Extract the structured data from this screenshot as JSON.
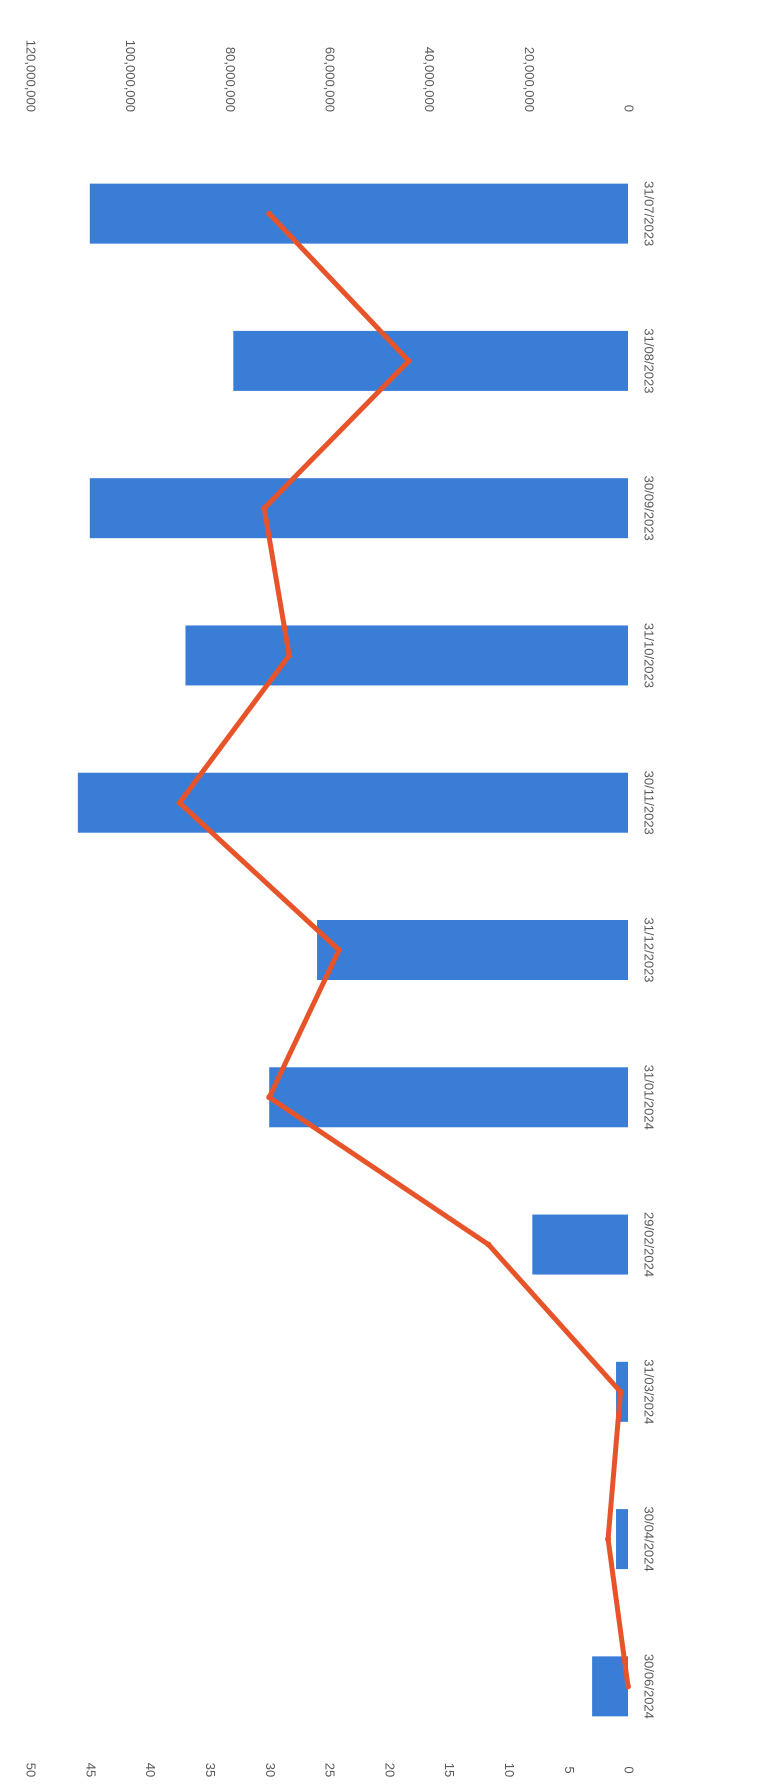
{
  "chart_data": {
    "type": "bar",
    "orientation": "rotated-90-clockwise",
    "categories": [
      "31/07/2023",
      "31/08/2023",
      "30/09/2023",
      "31/10/2023",
      "30/11/2023",
      "31/12/2023",
      "31/01/2024",
      "29/02/2024",
      "31/03/2024",
      "30/04/2024",
      "30/06/2024"
    ],
    "series": [
      {
        "type": "bar",
        "axis": "primary",
        "color": "#3a7dd6",
        "values": [
          45,
          33,
          45,
          37,
          46,
          26,
          30,
          8,
          1,
          1,
          3
        ]
      },
      {
        "type": "line",
        "axis": "secondary",
        "color": "#e8542a",
        "values": [
          72000000,
          44000000,
          73000000,
          68000000,
          90000000,
          58000000,
          72000000,
          28000000,
          1500000,
          4000000,
          0
        ]
      }
    ],
    "primary_axis": {
      "ticks": [
        "0",
        "5",
        "10",
        "15",
        "20",
        "25",
        "30",
        "35",
        "40",
        "45",
        "50"
      ],
      "range": [
        0,
        50
      ]
    },
    "secondary_axis": {
      "ticks": [
        "0",
        "20,000,000",
        "40,000,000",
        "60,000,000",
        "80,000,000",
        "100,000,000",
        "120,000,000"
      ],
      "range": [
        0,
        120000000
      ]
    },
    "grid": false,
    "legend": "none",
    "title": "",
    "xlabel": "",
    "ylabel": ""
  }
}
